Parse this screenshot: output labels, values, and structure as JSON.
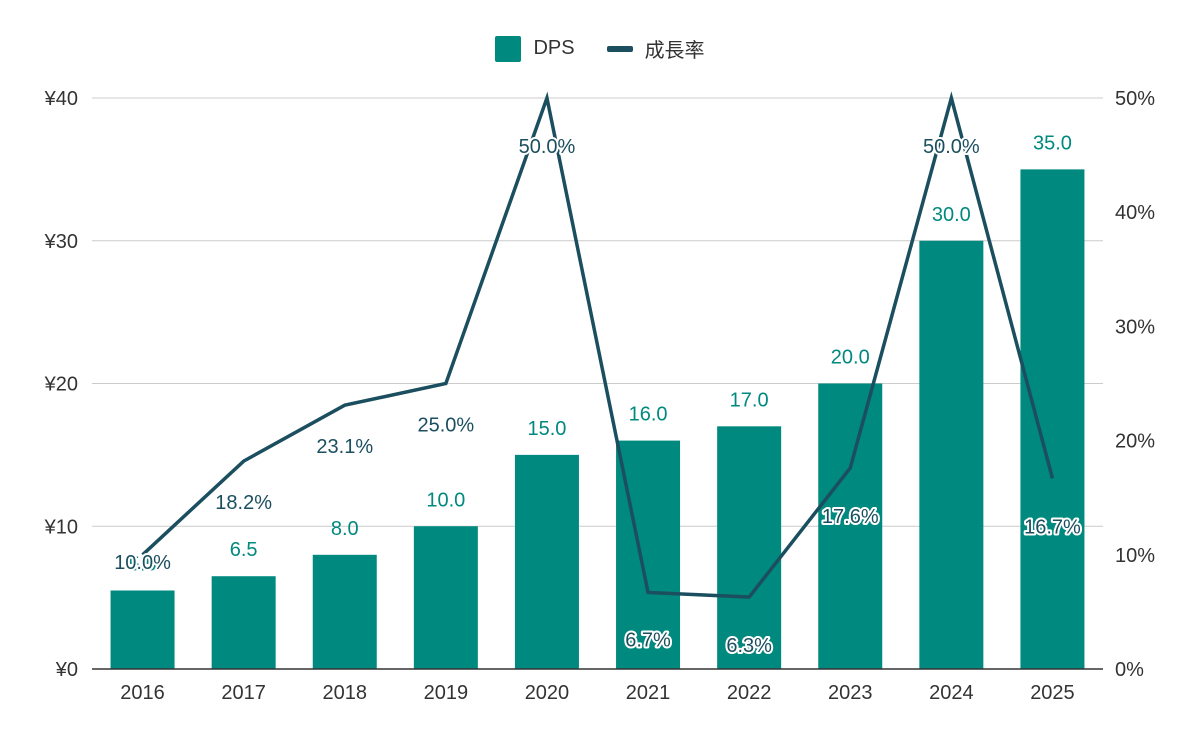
{
  "colors": {
    "bar": "#00897F",
    "line": "#1B4F5F",
    "grid": "#cccccc",
    "axis": "#333333"
  },
  "legend": {
    "bar_label": "DPS",
    "line_label": "成長率"
  },
  "chart_data": {
    "type": "bar",
    "categories": [
      "2016",
      "2017",
      "2018",
      "2019",
      "2020",
      "2021",
      "2022",
      "2023",
      "2024",
      "2025"
    ],
    "series": [
      {
        "name": "DPS",
        "type": "bar",
        "axis": "left",
        "values": [
          5.5,
          6.5,
          8.0,
          10.0,
          15.0,
          16.0,
          17.0,
          20.0,
          30.0,
          35.0
        ],
        "labels": [
          "5.5",
          "6.5",
          "8.0",
          "10.0",
          "15.0",
          "16.0",
          "17.0",
          "20.0",
          "30.0",
          "35.0"
        ]
      },
      {
        "name": "成長率",
        "type": "line",
        "axis": "right",
        "values": [
          10.0,
          18.2,
          23.1,
          25.0,
          50.0,
          6.7,
          6.3,
          17.6,
          50.0,
          16.7
        ],
        "labels": [
          "10.0%",
          "18.2%",
          "23.1%",
          "25.0%",
          "50.0%",
          "6.7%",
          "6.3%",
          "17.6%",
          "50.0%",
          "16.7%"
        ]
      }
    ],
    "y_left": {
      "ylim": [
        0,
        40
      ],
      "ticks": [
        0,
        10,
        20,
        30,
        40
      ],
      "tick_labels": [
        "¥0",
        "¥10",
        "¥20",
        "¥30",
        "¥40"
      ]
    },
    "y_right": {
      "ylim": [
        0,
        50
      ],
      "ticks": [
        0,
        10,
        20,
        30,
        40,
        50
      ],
      "tick_labels": [
        "0%",
        "10%",
        "20%",
        "30%",
        "40%",
        "50%"
      ]
    },
    "grid": true,
    "legend_position": "top-center"
  }
}
